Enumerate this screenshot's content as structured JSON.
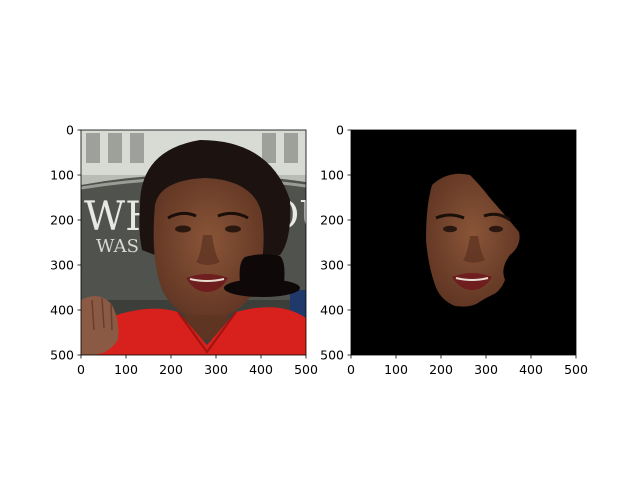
{
  "chart_data": [
    {
      "type": "image",
      "title": "",
      "xlabel": "",
      "ylabel": "",
      "xlim": [
        0,
        500
      ],
      "ylim": [
        500,
        0
      ],
      "xticks": [
        0,
        100,
        200,
        300,
        400,
        500
      ],
      "yticks": [
        0,
        100,
        200,
        300,
        400,
        500
      ],
      "xtick_labels": [
        "0",
        "100",
        "200",
        "300",
        "400",
        "500"
      ],
      "ytick_labels": [
        "0",
        "100",
        "200",
        "300",
        "400",
        "500"
      ],
      "content": "photo-with-hat",
      "colors": {
        "background_board": "#5c5e58",
        "jacket": "#d8201c",
        "hat": "#0f0808",
        "skin": "#7a4a32",
        "hair": "#1c1210"
      }
    },
    {
      "type": "image",
      "title": "",
      "xlabel": "",
      "ylabel": "",
      "xlim": [
        0,
        500
      ],
      "ylim": [
        500,
        0
      ],
      "xticks": [
        0,
        100,
        200,
        300,
        400,
        500
      ],
      "yticks": [
        0,
        100,
        200,
        300,
        400,
        500
      ],
      "xtick_labels": [
        "0",
        "100",
        "200",
        "300",
        "400",
        "500"
      ],
      "ytick_labels": [
        "0",
        "100",
        "200",
        "300",
        "400",
        "500"
      ],
      "content": "face-mask",
      "colors": {
        "background": "#000000",
        "skin": "#7a4a32"
      }
    }
  ],
  "board_text": {
    "line1": "WH",
    "line1b": "OU",
    "line2": "WAS"
  }
}
